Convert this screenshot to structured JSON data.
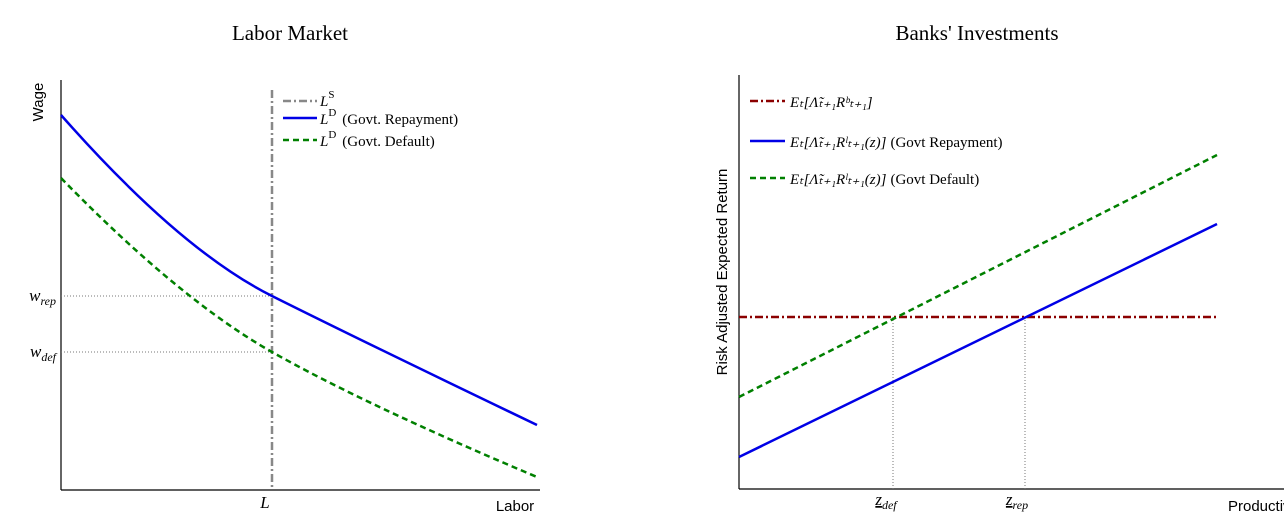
{
  "panels": [
    {
      "title": "Labor Market",
      "y_label": "Wage",
      "x_label": "Labor",
      "x_tick": "L",
      "y_ticks": [
        {
          "base": "w",
          "sub": "rep"
        },
        {
          "base": "w",
          "sub": "def"
        }
      ],
      "legend": [
        {
          "base": "L",
          "sup": "S",
          "text": ""
        },
        {
          "base": "L",
          "sup": "D",
          "text": "(Govt. Repayment)"
        },
        {
          "base": "L",
          "sup": "D",
          "text": "(Govt. Default)"
        }
      ]
    },
    {
      "title": "Banks' Investments",
      "y_label": "Risk Adjusted Expected Return",
      "x_label": "Productivity",
      "x_ticks": [
        {
          "base": "z",
          "sub": "def"
        },
        {
          "base": "z",
          "sub": "rep"
        }
      ],
      "legend": [
        {
          "expr": "Eₜ[Λ̃ₜ₊₁Rᵇₜ₊₁]",
          "text": ""
        },
        {
          "expr": "Eₜ[Λ̃ₜ₊₁Rˡₜ₊₁(z)]",
          "text": "(Govt Repayment)"
        },
        {
          "expr": "Eₜ[Λ̃ₜ₊₁Rˡₜ₊₁(z)]",
          "text": "(Govt Default)"
        }
      ]
    }
  ]
}
